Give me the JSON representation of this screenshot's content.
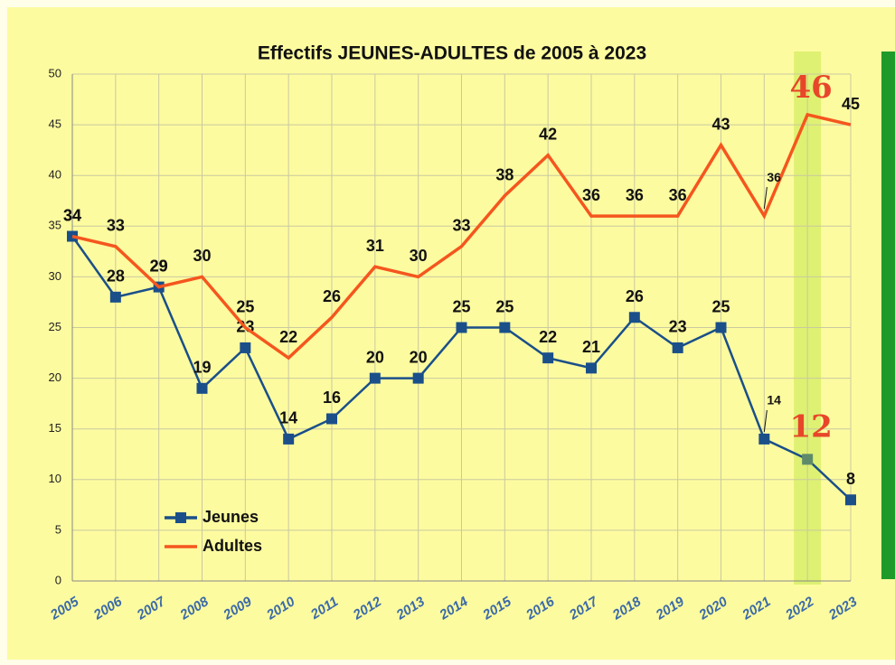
{
  "chart_data": {
    "type": "line",
    "title": "Effectifs JEUNES-ADULTES  de 2005 à 2023",
    "categories": [
      "2005",
      "2006",
      "2007",
      "2008",
      "2009",
      "2010",
      "2011",
      "2012",
      "2013",
      "2014",
      "2015",
      "2016",
      "2017",
      "2018",
      "2019",
      "2020",
      "2021",
      "2022",
      "2023"
    ],
    "series": [
      {
        "name": "Jeunes",
        "color": "#1a4f8a",
        "values": [
          34,
          28,
          29,
          19,
          23,
          14,
          16,
          20,
          20,
          25,
          25,
          22,
          21,
          26,
          23,
          25,
          14,
          12,
          8
        ]
      },
      {
        "name": "Adultes",
        "color": "#f5561e",
        "values": [
          34,
          33,
          29,
          30,
          25,
          22,
          26,
          31,
          30,
          33,
          38,
          42,
          36,
          36,
          36,
          43,
          36,
          46,
          45
        ]
      }
    ],
    "ylim": [
      0,
      50
    ],
    "yticks": [
      0,
      5,
      10,
      15,
      20,
      25,
      30,
      35,
      40,
      45,
      50
    ],
    "grid": true
  }
}
